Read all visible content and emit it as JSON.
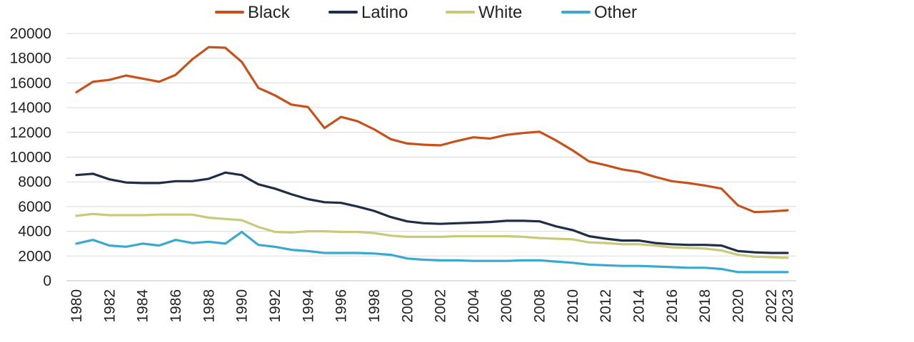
{
  "chart_data": {
    "type": "line",
    "title": "",
    "xlabel": "",
    "ylabel": "",
    "x": [
      1980,
      1981,
      1982,
      1983,
      1984,
      1985,
      1986,
      1987,
      1988,
      1989,
      1990,
      1991,
      1992,
      1993,
      1994,
      1995,
      1996,
      1997,
      1998,
      1999,
      2000,
      2001,
      2002,
      2003,
      2004,
      2005,
      2006,
      2007,
      2008,
      2009,
      2010,
      2011,
      2012,
      2013,
      2014,
      2015,
      2016,
      2017,
      2018,
      2019,
      2020,
      2021,
      2022,
      2023
    ],
    "x_tick_labels": [
      "1980",
      "1982",
      "1984",
      "1986",
      "1988",
      "1990",
      "1992",
      "1994",
      "1996",
      "1998",
      "2000",
      "2002",
      "2004",
      "2006",
      "2008",
      "2010",
      "2012",
      "2014",
      "2016",
      "2018",
      "2020",
      "2022",
      "2023"
    ],
    "x_tick_values": [
      1980,
      1982,
      1984,
      1986,
      1988,
      1990,
      1992,
      1994,
      1996,
      1998,
      2000,
      2002,
      2004,
      2006,
      2008,
      2010,
      2012,
      2014,
      2016,
      2018,
      2020,
      2022,
      2023
    ],
    "y_tick_labels": [
      "0",
      "2000",
      "4000",
      "6000",
      "8000",
      "10000",
      "12000",
      "14000",
      "16000",
      "18000",
      "20000"
    ],
    "ylim": [
      0,
      20000
    ],
    "grid": true,
    "legend_position": "top-center",
    "series": [
      {
        "name": "Black",
        "color": "#c8511b",
        "values": [
          15250,
          16100,
          16250,
          16600,
          16350,
          16100,
          16650,
          17900,
          18900,
          18850,
          17700,
          15600,
          15000,
          14250,
          14050,
          12350,
          13250,
          12900,
          12250,
          11450,
          11100,
          11000,
          10950,
          11300,
          11600,
          11500,
          11800,
          11950,
          12050,
          11350,
          10550,
          9650,
          9350,
          9000,
          8800,
          8400,
          8050,
          7900,
          7700,
          7450,
          6100,
          5550,
          5600,
          5700
        ]
      },
      {
        "name": "Latino",
        "color": "#1f2d46",
        "values": [
          8550,
          8650,
          8200,
          7950,
          7900,
          7900,
          8050,
          8050,
          8250,
          8750,
          8550,
          7800,
          7450,
          7000,
          6600,
          6350,
          6300,
          6000,
          5650,
          5150,
          4800,
          4650,
          4600,
          4650,
          4700,
          4750,
          4850,
          4850,
          4800,
          4400,
          4100,
          3600,
          3400,
          3250,
          3250,
          3050,
          2950,
          2900,
          2900,
          2850,
          2400,
          2300,
          2250,
          2250
        ]
      },
      {
        "name": "White",
        "color": "#c9c97a",
        "values": [
          5250,
          5400,
          5300,
          5300,
          5300,
          5350,
          5350,
          5350,
          5100,
          5000,
          4900,
          4350,
          3950,
          3900,
          4000,
          4000,
          3950,
          3950,
          3850,
          3650,
          3550,
          3550,
          3550,
          3600,
          3600,
          3600,
          3600,
          3550,
          3450,
          3400,
          3350,
          3100,
          3050,
          2950,
          2950,
          2850,
          2700,
          2650,
          2600,
          2450,
          2100,
          1950,
          1900,
          1850
        ]
      },
      {
        "name": "Other",
        "color": "#3aa9d0",
        "values": [
          3000,
          3300,
          2850,
          2750,
          3000,
          2850,
          3300,
          3050,
          3150,
          3000,
          3950,
          2900,
          2750,
          2500,
          2400,
          2250,
          2250,
          2250,
          2200,
          2100,
          1800,
          1700,
          1650,
          1650,
          1600,
          1600,
          1600,
          1650,
          1650,
          1550,
          1450,
          1300,
          1250,
          1200,
          1200,
          1150,
          1100,
          1050,
          1050,
          950,
          700,
          700,
          700,
          700
        ]
      }
    ]
  }
}
